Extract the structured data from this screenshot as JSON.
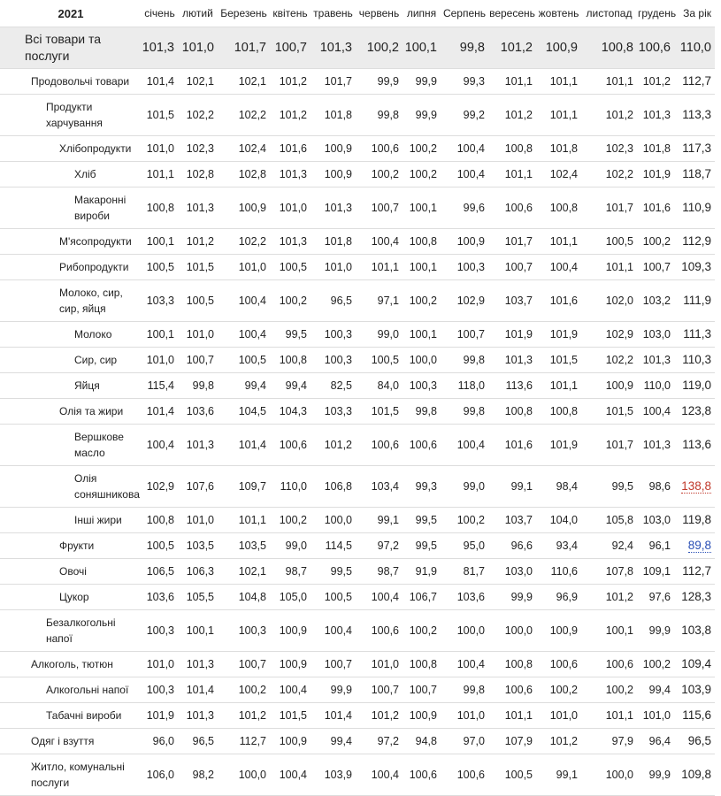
{
  "table": {
    "year": "2021",
    "columns": [
      "січень",
      "лютий",
      "Березень",
      "квітень",
      "травень",
      "червень",
      "липня",
      "Серпень",
      "вересень",
      "жовтень",
      "листопад",
      "грудень",
      "За рік"
    ],
    "rows": [
      {
        "label": "Всі товари та послуги",
        "values": [
          "101,3",
          "101,0",
          "101,7",
          "100,7",
          "101,3",
          "100,2",
          "100,1",
          "99,8",
          "101,2",
          "100,9",
          "100,8",
          "100,6",
          "110,0"
        ]
      },
      {
        "label": "Продовольчі товари",
        "values": [
          "101,4",
          "102,1",
          "102,1",
          "101,2",
          "101,7",
          "99,9",
          "99,9",
          "99,3",
          "101,1",
          "101,1",
          "101,1",
          "101,2",
          "112,7"
        ]
      },
      {
        "label": "Продукти харчування",
        "values": [
          "101,5",
          "102,2",
          "102,2",
          "101,2",
          "101,8",
          "99,8",
          "99,9",
          "99,2",
          "101,2",
          "101,1",
          "101,2",
          "101,3",
          "113,3"
        ]
      },
      {
        "label": "Хлібопродукти",
        "values": [
          "101,0",
          "102,3",
          "102,4",
          "101,6",
          "100,9",
          "100,6",
          "100,2",
          "100,4",
          "100,8",
          "101,8",
          "102,3",
          "101,8",
          "117,3"
        ]
      },
      {
        "label": "Хліб",
        "values": [
          "101,1",
          "102,8",
          "102,8",
          "101,3",
          "100,9",
          "100,2",
          "100,2",
          "100,4",
          "101,1",
          "102,4",
          "102,2",
          "101,9",
          "118,7"
        ]
      },
      {
        "label": "Макаронні вироби",
        "values": [
          "100,8",
          "101,3",
          "100,9",
          "101,0",
          "101,3",
          "100,7",
          "100,1",
          "99,6",
          "100,6",
          "100,8",
          "101,7",
          "101,6",
          "110,9"
        ]
      },
      {
        "label": "М'ясопродукти",
        "values": [
          "100,1",
          "101,2",
          "102,2",
          "101,3",
          "101,8",
          "100,4",
          "100,8",
          "100,9",
          "101,7",
          "101,1",
          "100,5",
          "100,2",
          "112,9"
        ]
      },
      {
        "label": "Рибопродукти",
        "values": [
          "100,5",
          "101,5",
          "101,0",
          "100,5",
          "101,0",
          "101,1",
          "100,1",
          "100,3",
          "100,7",
          "100,4",
          "101,1",
          "100,7",
          "109,3"
        ]
      },
      {
        "label": "Молоко, сир, сир, яйця",
        "values": [
          "103,3",
          "100,5",
          "100,4",
          "100,2",
          "96,5",
          "97,1",
          "100,2",
          "102,9",
          "103,7",
          "101,6",
          "102,0",
          "103,2",
          "111,9"
        ]
      },
      {
        "label": "Молоко",
        "values": [
          "100,1",
          "101,0",
          "100,4",
          "99,5",
          "100,3",
          "99,0",
          "100,1",
          "100,7",
          "101,9",
          "101,9",
          "102,9",
          "103,0",
          "111,3"
        ]
      },
      {
        "label": "Сир, сир",
        "values": [
          "101,0",
          "100,7",
          "100,5",
          "100,8",
          "100,3",
          "100,5",
          "100,0",
          "99,8",
          "101,3",
          "101,5",
          "102,2",
          "101,3",
          "110,3"
        ]
      },
      {
        "label": "Яйця",
        "values": [
          "115,4",
          "99,8",
          "99,4",
          "99,4",
          "82,5",
          "84,0",
          "100,3",
          "118,0",
          "113,6",
          "101,1",
          "100,9",
          "110,0",
          "119,0"
        ]
      },
      {
        "label": "Олія та жири",
        "values": [
          "101,4",
          "103,6",
          "104,5",
          "104,3",
          "103,3",
          "101,5",
          "99,8",
          "99,8",
          "100,8",
          "100,8",
          "101,5",
          "100,4",
          "123,8"
        ]
      },
      {
        "label": "Вершкове масло",
        "values": [
          "100,4",
          "101,3",
          "101,4",
          "100,6",
          "101,2",
          "100,6",
          "100,6",
          "100,4",
          "101,6",
          "101,9",
          "101,7",
          "101,3",
          "113,6"
        ]
      },
      {
        "label": "Олія соняшникова",
        "values": [
          "102,9",
          "107,6",
          "109,7",
          "110,0",
          "106,8",
          "103,4",
          "99,3",
          "99,0",
          "99,1",
          "98,4",
          "99,5",
          "98,6",
          "138,8"
        ]
      },
      {
        "label": "Інші жири",
        "values": [
          "100,8",
          "101,0",
          "101,1",
          "100,2",
          "100,0",
          "99,1",
          "99,5",
          "100,2",
          "103,7",
          "104,0",
          "105,8",
          "103,0",
          "119,8"
        ]
      },
      {
        "label": "Фрукти",
        "values": [
          "100,5",
          "103,5",
          "103,5",
          "99,0",
          "114,5",
          "97,2",
          "99,5",
          "95,0",
          "96,6",
          "93,4",
          "92,4",
          "96,1",
          "89,8"
        ]
      },
      {
        "label": "Овочі",
        "values": [
          "106,5",
          "106,3",
          "102,1",
          "98,7",
          "99,5",
          "98,7",
          "91,9",
          "81,7",
          "103,0",
          "110,6",
          "107,8",
          "109,1",
          "112,7"
        ]
      },
      {
        "label": "Цукор",
        "values": [
          "103,6",
          "105,5",
          "104,8",
          "105,0",
          "100,5",
          "100,4",
          "106,7",
          "103,6",
          "99,9",
          "96,9",
          "101,2",
          "97,6",
          "128,3"
        ]
      },
      {
        "label": "Безалкогольні напої",
        "values": [
          "100,3",
          "100,1",
          "100,3",
          "100,9",
          "100,4",
          "100,6",
          "100,2",
          "100,0",
          "100,0",
          "100,9",
          "100,1",
          "99,9",
          "103,8"
        ]
      },
      {
        "label": "Алкоголь, тютюн",
        "values": [
          "101,0",
          "101,3",
          "100,7",
          "100,9",
          "100,7",
          "101,0",
          "100,8",
          "100,4",
          "100,8",
          "100,6",
          "100,6",
          "100,2",
          "109,4"
        ]
      },
      {
        "label": "Алкогольні напої",
        "values": [
          "100,3",
          "101,4",
          "100,2",
          "100,4",
          "99,9",
          "100,7",
          "100,7",
          "99,8",
          "100,6",
          "100,2",
          "100,2",
          "99,4",
          "103,9"
        ]
      },
      {
        "label": "Табачні вироби",
        "values": [
          "101,9",
          "101,3",
          "101,2",
          "101,5",
          "101,4",
          "101,2",
          "100,9",
          "101,0",
          "101,1",
          "101,0",
          "101,1",
          "101,0",
          "115,6"
        ]
      },
      {
        "label": "Одяг і взуття",
        "values": [
          "96,0",
          "96,5",
          "112,7",
          "100,9",
          "99,4",
          "97,2",
          "94,8",
          "97,0",
          "107,9",
          "101,2",
          "97,9",
          "96,4",
          "96,5"
        ]
      },
      {
        "label": "Житло, комунальні послуги",
        "values": [
          "106,0",
          "98,2",
          "100,0",
          "100,4",
          "103,9",
          "100,4",
          "100,6",
          "100,6",
          "100,5",
          "99,1",
          "100,0",
          "99,9",
          "109,8"
        ]
      }
    ]
  }
}
